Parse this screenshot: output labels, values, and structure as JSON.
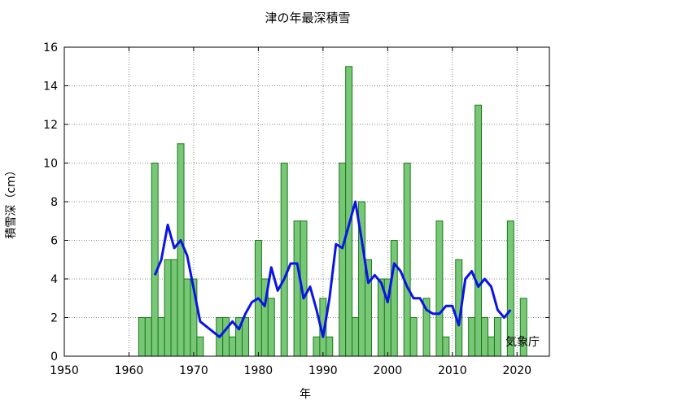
{
  "chart_data": {
    "type": "bar",
    "title": "津の年最深積雪",
    "xlabel": "年",
    "ylabel": "積雪深（cm）",
    "credit": "気象庁",
    "xlim": [
      1950,
      2025
    ],
    "ylim": [
      0,
      16
    ],
    "xticks": [
      1950,
      1960,
      1970,
      1980,
      1990,
      2000,
      2010,
      2020
    ],
    "yticks": [
      0,
      2,
      4,
      6,
      8,
      10,
      12,
      14,
      16
    ],
    "grid": true,
    "colors": {
      "bar_fill": "#77c777",
      "bar_stroke": "#1a7a1a",
      "line": "#0a14e6"
    },
    "series": [
      {
        "type": "bar",
        "x": [
          1962,
          1963,
          1964,
          1965,
          1966,
          1967,
          1968,
          1969,
          1970,
          1971,
          1974,
          1975,
          1976,
          1977,
          1978,
          1980,
          1981,
          1982,
          1984,
          1986,
          1987,
          1989,
          1990,
          1991,
          1993,
          1994,
          1995,
          1996,
          1997,
          1999,
          2000,
          2001,
          2003,
          2004,
          2006,
          2008,
          2009,
          2011,
          2013,
          2014,
          2015,
          2016,
          2017,
          2019,
          2021
        ],
        "values": [
          2,
          2,
          10,
          2,
          5,
          5,
          11,
          4,
          4,
          1,
          2,
          2,
          1,
          2,
          2,
          6,
          4,
          3,
          10,
          7,
          7,
          1,
          3,
          1,
          10,
          15,
          2,
          8,
          5,
          4,
          4,
          6,
          10,
          2,
          3,
          7,
          1,
          5,
          2,
          13,
          2,
          1,
          2,
          7,
          3
        ]
      },
      {
        "type": "line",
        "x": [
          1964,
          1965,
          1966,
          1967,
          1968,
          1969,
          1971,
          1974,
          1975,
          1976,
          1977,
          1978,
          1979,
          1980,
          1981,
          1982,
          1983,
          1984,
          1985,
          1986,
          1987,
          1988,
          1989,
          1990,
          1991,
          1992,
          1993,
          1994,
          1995,
          1996,
          1997,
          1998,
          1999,
          2000,
          2001,
          2002,
          2003,
          2004,
          2005,
          2006,
          2007,
          2008,
          2009,
          2010,
          2011,
          2012,
          2013,
          2014,
          2015,
          2016,
          2017,
          2018,
          2019
        ],
        "values": [
          4.2,
          5.0,
          6.8,
          5.6,
          6.0,
          5.2,
          1.8,
          1.0,
          1.4,
          1.8,
          1.4,
          2.2,
          2.8,
          3.0,
          2.6,
          4.6,
          3.4,
          4.0,
          4.8,
          4.8,
          3.0,
          3.6,
          2.4,
          1.0,
          3.0,
          5.8,
          5.6,
          6.8,
          8.0,
          6.0,
          3.8,
          4.2,
          3.8,
          2.8,
          4.8,
          4.4,
          3.6,
          3.0,
          3.0,
          2.4,
          2.2,
          2.2,
          2.6,
          2.6,
          1.6,
          4.0,
          4.4,
          3.6,
          4.0,
          3.6,
          2.4,
          2.0,
          2.4
        ]
      }
    ]
  }
}
